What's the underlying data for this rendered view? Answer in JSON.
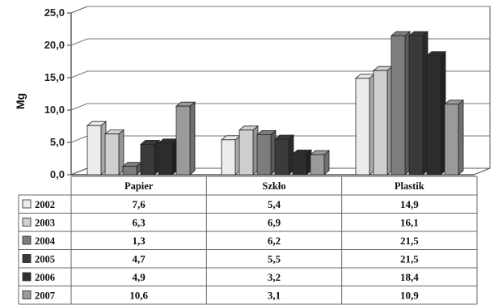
{
  "chart_data": {
    "type": "bar",
    "ylabel": "Mg",
    "ylim": [
      0,
      25
    ],
    "yticks": [
      "0,0",
      "5,0",
      "10,0",
      "15,0",
      "20,0",
      "25,0"
    ],
    "grid": true,
    "categories": [
      "Papier",
      "Szkło",
      "Plastik"
    ],
    "series": [
      {
        "name": "2002",
        "color": "#ececec",
        "values": [
          7.6,
          5.4,
          14.9
        ],
        "labels": [
          "7,6",
          "5,4",
          "14,9"
        ]
      },
      {
        "name": "2003",
        "color": "#cfcfcf",
        "values": [
          6.3,
          6.9,
          16.1
        ],
        "labels": [
          "6,3",
          "6,9",
          "16,1"
        ]
      },
      {
        "name": "2004",
        "color": "#7d7d7d",
        "values": [
          1.3,
          6.2,
          21.5
        ],
        "labels": [
          "1,3",
          "6,2",
          "21,5"
        ]
      },
      {
        "name": "2005",
        "color": "#3a3a3a",
        "values": [
          4.7,
          5.5,
          21.5
        ],
        "labels": [
          "4,7",
          "5,5",
          "21,5"
        ]
      },
      {
        "name": "2006",
        "color": "#2e2e2e",
        "values": [
          4.9,
          3.2,
          18.4
        ],
        "labels": [
          "4,9",
          "3,2",
          "18,4"
        ]
      },
      {
        "name": "2007",
        "color": "#9a9a9a",
        "values": [
          10.6,
          3.1,
          10.9
        ],
        "labels": [
          "10,6",
          "3,1",
          "10,9"
        ]
      }
    ],
    "legend": "data-table"
  }
}
